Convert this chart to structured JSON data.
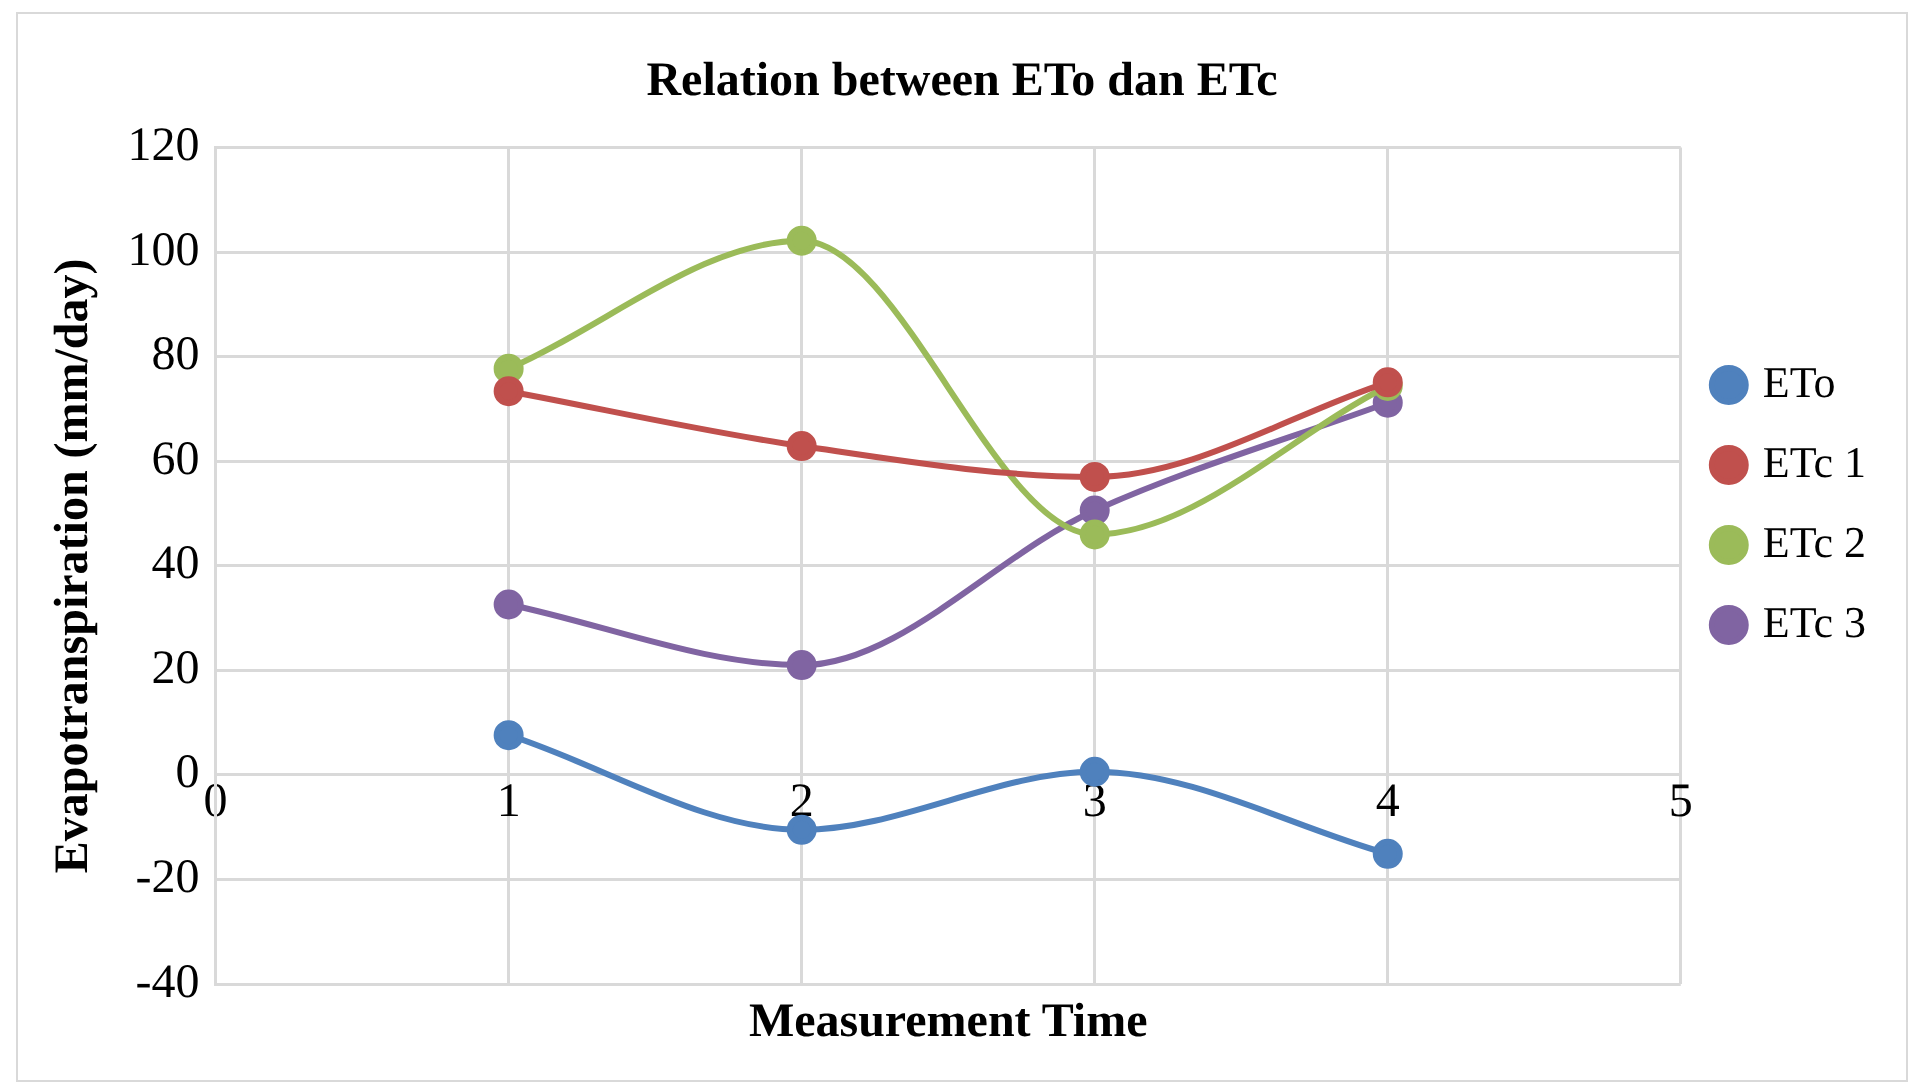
{
  "chart_data": {
    "type": "line",
    "title": "Relation between ETo dan ETc",
    "xlabel": "Measurement Time",
    "ylabel": "Evapotranspiration (mm/day)",
    "x": [
      1,
      2,
      3,
      4
    ],
    "series": [
      {
        "name": "ETo",
        "color": "#4f81bd",
        "values": [
          7.6,
          -10.5,
          0.6,
          -15.1
        ]
      },
      {
        "name": "ETc 1",
        "color": "#c0504d",
        "values": [
          73.4,
          62.9,
          57.0,
          75.1
        ]
      },
      {
        "name": "ETc 2",
        "color": "#9bbb59",
        "values": [
          77.7,
          102.2,
          46.0,
          74.4
        ]
      },
      {
        "name": "ETc 3",
        "color": "#8064a2",
        "values": [
          32.6,
          21.0,
          50.6,
          71.2
        ]
      }
    ],
    "xlim": [
      0,
      5
    ],
    "xticks": [
      0,
      1,
      2,
      3,
      4,
      5
    ],
    "ylim": [
      -40,
      120
    ],
    "yticks": [
      -40,
      -20,
      0,
      20,
      40,
      60,
      80,
      100,
      120
    ],
    "grid": true,
    "legend": "right",
    "marker": "circle",
    "line_style": "solid"
  }
}
